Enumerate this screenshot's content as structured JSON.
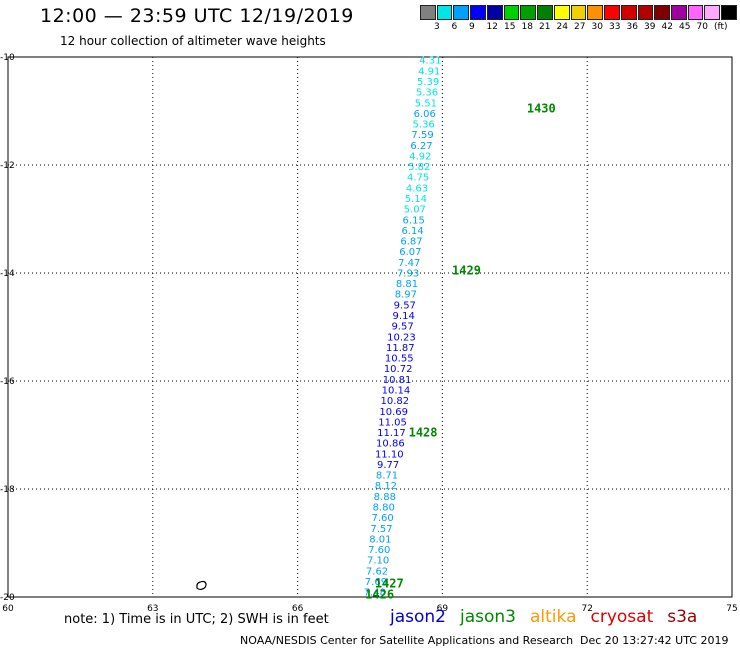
{
  "title": "12:00 — 23:59 UTC 12/19/2019",
  "subtitle": "12 hour collection of altimeter wave heights",
  "note": "note:  1) Time is in UTC;  2) SWH is in feet",
  "satellites": [
    {
      "name": "jason2",
      "color": "#0000cc"
    },
    {
      "name": "jason3",
      "color": "#008800"
    },
    {
      "name": "altika",
      "color": "#ff9900"
    },
    {
      "name": "cryosat",
      "color": "#dd0000"
    },
    {
      "name": "s3a",
      "color": "#990000"
    }
  ],
  "footer_left": "NOAA/NESDIS Center for Satellite Applications and Research",
  "footer_right": "Dec 20 13:27:42 UTC 2019",
  "colorbar": {
    "colors": [
      "#808080",
      "#00e5e5",
      "#00a0ff",
      "#0000ff",
      "#0000a0",
      "#00d000",
      "#00a000",
      "#008000",
      "#ffff00",
      "#f0d000",
      "#ff9000",
      "#ff0000",
      "#d00000",
      "#b00000",
      "#800000",
      "#a000a0",
      "#ff66ff",
      "#ffaaff",
      "#000000"
    ],
    "labels": [
      "3",
      "6",
      "9",
      "12",
      "15",
      "18",
      "21",
      "24",
      "27",
      "30",
      "33",
      "36",
      "39",
      "42",
      "45",
      "70",
      "(ft)"
    ]
  },
  "chart_data": {
    "type": "scatter",
    "xlim": [
      60,
      75
    ],
    "ylim": [
      -20,
      -10
    ],
    "x_ticks": [
      "60",
      "63",
      "66",
      "69",
      "72",
      "75"
    ],
    "y_ticks": [
      "-10",
      "-12",
      "-14",
      "-16",
      "-18",
      "-20"
    ],
    "grid": true,
    "track": {
      "satellite": "jason3",
      "start": {
        "lon": 68.75,
        "lat": -10.05
      },
      "end": {
        "lon": 67.6,
        "lat": -19.9
      },
      "values": [
        "4.31",
        "4.91",
        "5.39",
        "5.36",
        "5.51",
        "6.06",
        "5.36",
        "7.59",
        "6.27",
        "4.92",
        "5.82",
        "4.75",
        "4.63",
        "5.14",
        "5.07",
        "6.15",
        "6.14",
        "6.87",
        "6.07",
        "7.47",
        "7.93",
        "8.81",
        "8.97",
        "9.57",
        "9.14",
        "9.57",
        "10.23",
        "11.87",
        "10.55",
        "10.72",
        "10.81",
        "10.14",
        "10.82",
        "10.69",
        "11.05",
        "11.17",
        "10.86",
        "11.10",
        "9.77",
        "8.71",
        "8.12",
        "8.88",
        "8.80",
        "7.60",
        "7.57",
        "8.01",
        "7.60",
        "7.10",
        "7.62",
        "7.69",
        "7.48"
      ]
    },
    "time_labels": [
      {
        "text": "1430",
        "lon": 70.75,
        "lat": -10.95
      },
      {
        "text": "1429",
        "lon": 69.2,
        "lat": -13.95
      },
      {
        "text": "1428",
        "lon": 68.3,
        "lat": -16.95
      },
      {
        "text": "1427",
        "lon": 67.6,
        "lat": -19.75
      },
      {
        "text": "1426",
        "lon": 67.4,
        "lat": -19.95
      }
    ]
  }
}
